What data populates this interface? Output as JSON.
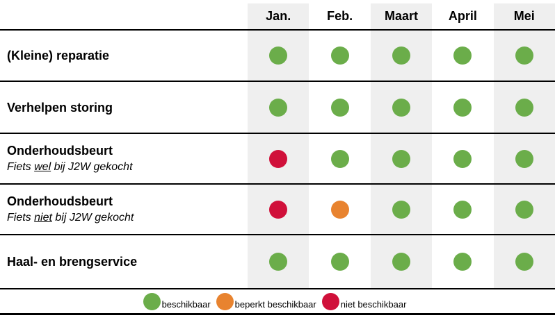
{
  "chart_data": {
    "type": "table",
    "columns": [
      "Jan.",
      "Feb.",
      "Maart",
      "April",
      "Mei"
    ],
    "rows": [
      {
        "label": "(Kleine) reparatie",
        "sublabel": null,
        "values": [
          "beschikbaar",
          "beschikbaar",
          "beschikbaar",
          "beschikbaar",
          "beschikbaar"
        ]
      },
      {
        "label": "Verhelpen storing",
        "sublabel": null,
        "values": [
          "beschikbaar",
          "beschikbaar",
          "beschikbaar",
          "beschikbaar",
          "beschikbaar"
        ]
      },
      {
        "label": "Onderhoudsbeurt",
        "sublabel": {
          "pre": "Fiets ",
          "underline": "wel",
          "post": " bij J2W gekocht"
        },
        "values": [
          "niet beschikbaar",
          "beschikbaar",
          "beschikbaar",
          "beschikbaar",
          "beschikbaar"
        ]
      },
      {
        "label": "Onderhoudsbeurt",
        "sublabel": {
          "pre": "Fiets ",
          "underline": "niet",
          "post": " bij J2W gekocht"
        },
        "values": [
          "niet beschikbaar",
          "beperkt beschikbaar",
          "beschikbaar",
          "beschikbaar",
          "beschikbaar"
        ]
      },
      {
        "label": "Haal- en brengservice",
        "sublabel": null,
        "values": [
          "beschikbaar",
          "beschikbaar",
          "beschikbaar",
          "beschikbaar",
          "beschikbaar"
        ]
      }
    ],
    "legend": [
      "beschikbaar",
      "beperkt beschikbaar",
      "niet beschikbaar"
    ],
    "status_colors": {
      "beschikbaar": "#6bad4a",
      "beperkt beschikbaar": "#e8832f",
      "niet beschikbaar": "#d0103a"
    },
    "shaded_columns": [
      0,
      2,
      4
    ],
    "shade_color": "#efefef"
  }
}
